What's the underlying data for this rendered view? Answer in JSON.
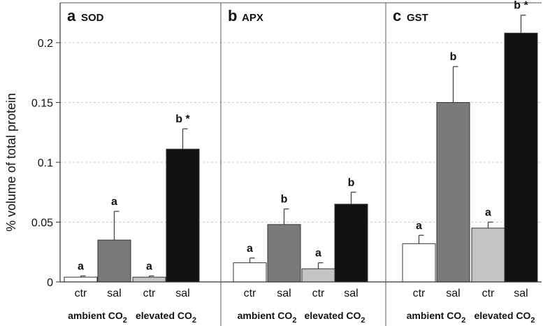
{
  "chart_data": {
    "type": "bar",
    "ylabel": "% volume of total protein",
    "ylim": [
      0,
      0.225
    ],
    "yticks": [
      0,
      0.05,
      0.1,
      0.15,
      0.2
    ],
    "ytick_labels": [
      "0",
      "0.05",
      "0.1",
      "0.15",
      "0.2"
    ],
    "grid": true,
    "categories": [
      "ctr",
      "sal",
      "ctr",
      "sal"
    ],
    "groups": [
      {
        "label": "ambient CO",
        "sub": "2"
      },
      {
        "label": "elevated CO",
        "sub": "2"
      }
    ],
    "bar_colors": [
      "#ffffff",
      "#7a7a7a",
      "#c4c4c4",
      "#111111"
    ],
    "panels": [
      {
        "letter": "a",
        "name": "SOD",
        "values": [
          0.004,
          0.035,
          0.004,
          0.111
        ],
        "errors": [
          0.001,
          0.024,
          0.001,
          0.017
        ],
        "sig": [
          "a",
          "a",
          "a",
          "b *"
        ]
      },
      {
        "letter": "b",
        "name": "APX",
        "values": [
          0.016,
          0.048,
          0.011,
          0.065
        ],
        "errors": [
          0.004,
          0.013,
          0.005,
          0.01
        ],
        "sig": [
          "a",
          "b",
          "a",
          "b"
        ]
      },
      {
        "letter": "c",
        "name": "GST",
        "values": [
          0.032,
          0.15,
          0.045,
          0.208
        ],
        "errors": [
          0.007,
          0.03,
          0.005,
          0.015
        ],
        "sig": [
          "a",
          "b",
          "a",
          "b *"
        ]
      }
    ]
  }
}
